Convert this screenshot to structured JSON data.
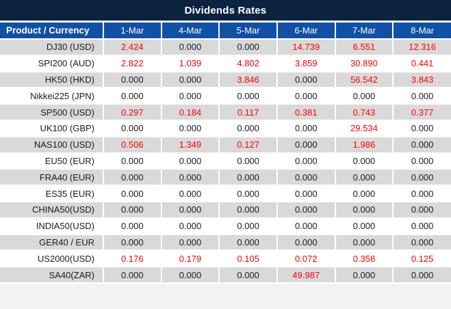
{
  "title": "Dividends Rates",
  "colors": {
    "title_bar_bg": "#0c2340",
    "header_bg": "#1050a5",
    "row_alt_bg": "#d9d9d9",
    "row_bg": "#ffffff",
    "value_nonzero_red": "#ff0000",
    "value_zero_dark": "#1a1a1a"
  },
  "table": {
    "product_header": "Product / Currency",
    "date_headers": [
      "1-Mar",
      "4-Mar",
      "5-Mar",
      "6-Mar",
      "7-Mar",
      "8-Mar"
    ],
    "rows": [
      {
        "product": "DJ30 (USD)",
        "values": [
          "2.424",
          "0.000",
          "0.000",
          "14.739",
          "6.551",
          "12.316"
        ]
      },
      {
        "product": "SPI200 (AUD)",
        "values": [
          "2.822",
          "1.039",
          "4.802",
          "3.859",
          "30.890",
          "0.441"
        ]
      },
      {
        "product": "HK50 (HKD)",
        "values": [
          "0.000",
          "0.000",
          "3.846",
          "0.000",
          "56.542",
          "3.843"
        ]
      },
      {
        "product": "Nikkei225 (JPN)",
        "values": [
          "0.000",
          "0.000",
          "0.000",
          "0.000",
          "0.000",
          "0.000"
        ]
      },
      {
        "product": "SP500 (USD)",
        "values": [
          "0.297",
          "0.184",
          "0.117",
          "0.381",
          "0.743",
          "0.377"
        ]
      },
      {
        "product": "UK100 (GBP)",
        "values": [
          "0.000",
          "0.000",
          "0.000",
          "0.000",
          "29.534",
          "0.000"
        ]
      },
      {
        "product": "NAS100 (USD)",
        "values": [
          "0.506",
          "1.349",
          "0.127",
          "0.000",
          "1.986",
          "0.000"
        ]
      },
      {
        "product": "EU50 (EUR)",
        "values": [
          "0.000",
          "0.000",
          "0.000",
          "0.000",
          "0.000",
          "0.000"
        ]
      },
      {
        "product": "FRA40 (EUR)",
        "values": [
          "0.000",
          "0.000",
          "0.000",
          "0.000",
          "0.000",
          "0.000"
        ]
      },
      {
        "product": "ES35 (EUR)",
        "values": [
          "0.000",
          "0.000",
          "0.000",
          "0.000",
          "0.000",
          "0.000"
        ]
      },
      {
        "product": "CHINA50(USD)",
        "values": [
          "0.000",
          "0.000",
          "0.000",
          "0.000",
          "0.000",
          "0.000"
        ]
      },
      {
        "product": "INDIA50(USD)",
        "values": [
          "0.000",
          "0.000",
          "0.000",
          "0.000",
          "0.000",
          "0.000"
        ]
      },
      {
        "product": "GER40 / EUR",
        "values": [
          "0.000",
          "0.000",
          "0.000",
          "0.000",
          "0.000",
          "0.000"
        ]
      },
      {
        "product": "US2000(USD)",
        "values": [
          "0.176",
          "0.179",
          "0.105",
          "0.072",
          "0.358",
          "0.125"
        ]
      },
      {
        "product": "SA40(ZAR)",
        "values": [
          "0.000",
          "0.000",
          "0.000",
          "49.987",
          "0.000",
          "0.000"
        ]
      }
    ]
  }
}
